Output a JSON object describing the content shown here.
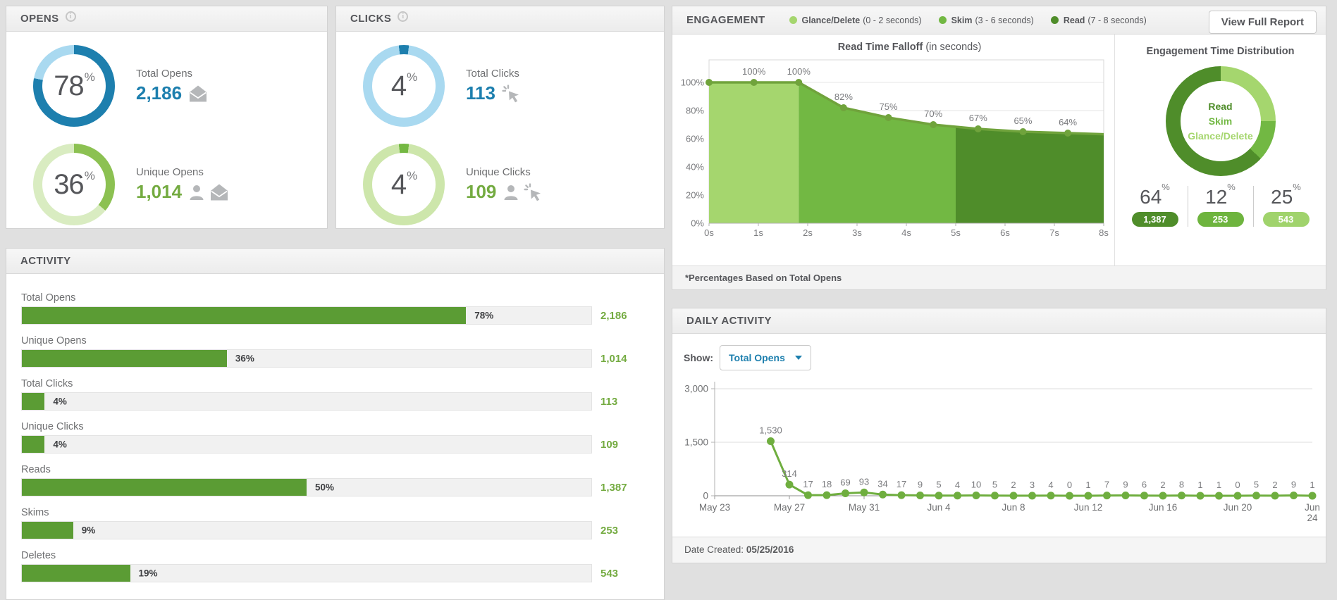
{
  "colors": {
    "blue": "#1d7fae",
    "light_blue": "#a9d9f0",
    "green_light": "#a5d66e",
    "green_mid": "#72b843",
    "green_dark": "#4f8d2a",
    "line_green": "#70a33c",
    "bar_green": "#5b9c34",
    "value_green": "#74ab41",
    "text_dark": "#55565a",
    "text_gray": "#77787b",
    "icon_gray": "#b5b7b9"
  },
  "panels": {
    "opens": {
      "title": "OPENS",
      "metrics": [
        {
          "pct": "78",
          "label": "Total Opens",
          "value": "2,186",
          "value_color": "#1d7fae",
          "donut": {
            "pct": 78,
            "from_deg": 0,
            "fill": "#1d7fae",
            "track": "#a9d9f0"
          },
          "icons": [
            "envelope"
          ]
        },
        {
          "pct": "36",
          "label": "Unique Opens",
          "value": "1,014",
          "value_color": "#74ab41",
          "donut": {
            "pct": 36,
            "from_deg": 0,
            "fill": "#8cc152",
            "track": "#d9ecc1"
          },
          "icons": [
            "person",
            "envelope"
          ]
        }
      ]
    },
    "clicks": {
      "title": "CLICKS",
      "metrics": [
        {
          "pct": "4",
          "label": "Total Clicks",
          "value": "113",
          "value_color": "#1d7fae",
          "donut": {
            "pct": 4,
            "from_deg": -7.2,
            "fill": "#1d7fae",
            "track": "#a9d9f0"
          },
          "icons": [
            "cursor"
          ]
        },
        {
          "pct": "4",
          "label": "Unique Clicks",
          "value": "109",
          "value_color": "#74ab41",
          "donut": {
            "pct": 4,
            "from_deg": -7.2,
            "fill": "#74b843",
            "track": "#cde6ab"
          },
          "icons": [
            "person",
            "cursor"
          ]
        }
      ]
    },
    "engagement": {
      "title": "ENGAGEMENT",
      "button_label": "View Full Report",
      "legend": [
        {
          "name": "Glance/Delete",
          "range": "(0 - 2 seconds)",
          "color": "#a5d66e"
        },
        {
          "name": "Skim",
          "range": "(3 - 6 seconds)",
          "color": "#72b843"
        },
        {
          "name": "Read",
          "range": "(7 - 8 seconds)",
          "color": "#4f8d2a"
        }
      ],
      "falloff": {
        "title": "Read Time Falloff",
        "subtitle": "(in seconds)"
      },
      "distribution": {
        "title": "Engagement Time Distribution",
        "center_labels": [
          {
            "text": "Read",
            "color": "#4f8d2a"
          },
          {
            "text": "Skim",
            "color": "#72b843"
          },
          {
            "text": "Glance/Delete",
            "color": "#a5d66e"
          }
        ],
        "stats": [
          {
            "pct": "64",
            "count": "1,387",
            "color": "#4f8d2a"
          },
          {
            "pct": "12",
            "count": "253",
            "color": "#6eb43e"
          },
          {
            "pct": "25",
            "count": "543",
            "color": "#a0d36c"
          }
        ]
      },
      "footnote": "*Percentages Based on Total Opens"
    },
    "activity": {
      "title": "ACTIVITY",
      "rows": [
        {
          "label": "Total Opens",
          "pct": 78,
          "pct_label": "78%",
          "value": "2,186"
        },
        {
          "label": "Unique Opens",
          "pct": 36,
          "pct_label": "36%",
          "value": "1,014"
        },
        {
          "label": "Total Clicks",
          "pct": 4,
          "pct_label": "4%",
          "value": "113"
        },
        {
          "label": "Unique Clicks",
          "pct": 4,
          "pct_label": "4%",
          "value": "109"
        },
        {
          "label": "Reads",
          "pct": 50,
          "pct_label": "50%",
          "value": "1,387"
        },
        {
          "label": "Skims",
          "pct": 9,
          "pct_label": "9%",
          "value": "253"
        },
        {
          "label": "Deletes",
          "pct": 19,
          "pct_label": "19%",
          "value": "543"
        }
      ]
    },
    "daily": {
      "title": "DAILY ACTIVITY",
      "show_label": "Show:",
      "show_value": "Total Opens",
      "footer_label": "Date Created:",
      "footer_value": "05/25/2016"
    }
  },
  "chart_data": [
    {
      "id": "read_time_falloff",
      "type": "area",
      "title": "Read Time Falloff",
      "subtitle": "(in seconds)",
      "x_tick_labels": [
        "0s",
        "1s",
        "2s",
        "3s",
        "4s",
        "5s",
        "6s",
        "7s",
        "8s"
      ],
      "x": [
        0,
        1,
        2,
        3,
        4,
        5,
        6,
        7,
        8
      ],
      "values": [
        100,
        100,
        100,
        82,
        75,
        70,
        67,
        65,
        64
      ],
      "point_labels": [
        "",
        "100%",
        "100%",
        "82%",
        "75%",
        "70%",
        "67%",
        "65%",
        "64%"
      ],
      "y_tick_labels": [
        "0%",
        "20%",
        "40%",
        "60%",
        "80%",
        "100%"
      ],
      "y_ticks": [
        0,
        20,
        40,
        60,
        80,
        100
      ],
      "ylim": [
        0,
        116
      ],
      "x_extend": 8.8,
      "grid": true,
      "segments": [
        {
          "name": "Glance/Delete",
          "from": 0,
          "to": 2,
          "color": "#a5d66e"
        },
        {
          "name": "Skim",
          "from": 2,
          "to": 5.5,
          "color": "#72b843"
        },
        {
          "name": "Read",
          "from": 5.5,
          "to": 8.8,
          "color": "#4f8d2a"
        }
      ],
      "line_color": "#70a33c"
    },
    {
      "id": "engagement_time_distribution",
      "type": "pie",
      "title": "Engagement Time Distribution",
      "slices": [
        {
          "label": "Read",
          "pct": 64,
          "count": 1387,
          "color": "#4f8d2a"
        },
        {
          "label": "Skim",
          "pct": 12,
          "count": 253,
          "color": "#72b843"
        },
        {
          "label": "Glance/Delete",
          "pct": 25,
          "count": 543,
          "color": "#a5d66e"
        }
      ],
      "donut_order_from_top": [
        "Glance/Delete",
        "Skim",
        "Read"
      ]
    },
    {
      "id": "activity_bars",
      "type": "bar",
      "orientation": "horizontal",
      "categories": [
        "Total Opens",
        "Unique Opens",
        "Total Clicks",
        "Unique Clicks",
        "Reads",
        "Skims",
        "Deletes"
      ],
      "values_pct": [
        78,
        36,
        4,
        4,
        50,
        9,
        19
      ],
      "values": [
        2186,
        1014,
        113,
        109,
        1387,
        253,
        543
      ],
      "xlim": [
        0,
        100
      ],
      "bar_color": "#5b9c34"
    },
    {
      "id": "daily_activity",
      "type": "line",
      "series_name": "Total Opens",
      "ylim": [
        0,
        3000
      ],
      "y_ticks": [
        0,
        1500,
        3000
      ],
      "y_tick_labels": [
        "0",
        "1,500",
        "3,000"
      ],
      "x_axis_total_days": 32,
      "x_ticks": [
        {
          "label": "May 23",
          "day": 0
        },
        {
          "label": "May 27",
          "day": 4
        },
        {
          "label": "May 31",
          "day": 8
        },
        {
          "label": "Jun 4",
          "day": 12
        },
        {
          "label": "Jun 8",
          "day": 16
        },
        {
          "label": "Jun 12",
          "day": 20
        },
        {
          "label": "Jun 16",
          "day": 24
        },
        {
          "label": "Jun 20",
          "day": 28
        },
        {
          "label": "Jun 24",
          "day": 32,
          "wrap": true
        }
      ],
      "start_day": 3,
      "dates": [
        "May 26",
        "May 27",
        "May 28",
        "May 29",
        "May 30",
        "May 31",
        "Jun 1",
        "Jun 2",
        "Jun 3",
        "Jun 4",
        "Jun 5",
        "Jun 6",
        "Jun 7",
        "Jun 8",
        "Jun 9",
        "Jun 10",
        "Jun 11",
        "Jun 12",
        "Jun 13",
        "Jun 14",
        "Jun 15",
        "Jun 16",
        "Jun 17",
        "Jun 18",
        "Jun 19",
        "Jun 20",
        "Jun 21",
        "Jun 22",
        "Jun 23",
        "Jun 24"
      ],
      "values": [
        1530,
        314,
        17,
        18,
        69,
        93,
        34,
        17,
        9,
        5,
        4,
        10,
        5,
        2,
        3,
        4,
        0,
        1,
        7,
        9,
        6,
        2,
        8,
        1,
        1,
        0,
        5,
        2,
        9,
        1
      ],
      "value_labels": [
        "1,530",
        "314",
        "17",
        "18",
        "69",
        "93",
        "34",
        "17",
        "9",
        "5",
        "4",
        "10",
        "5",
        "2",
        "3",
        "4",
        "0",
        "1",
        "7",
        "9",
        "6",
        "2",
        "8",
        "1",
        "1",
        "0",
        "5",
        "2",
        "9",
        "1"
      ],
      "line_color": "#6fae3f",
      "grid": true
    }
  ]
}
